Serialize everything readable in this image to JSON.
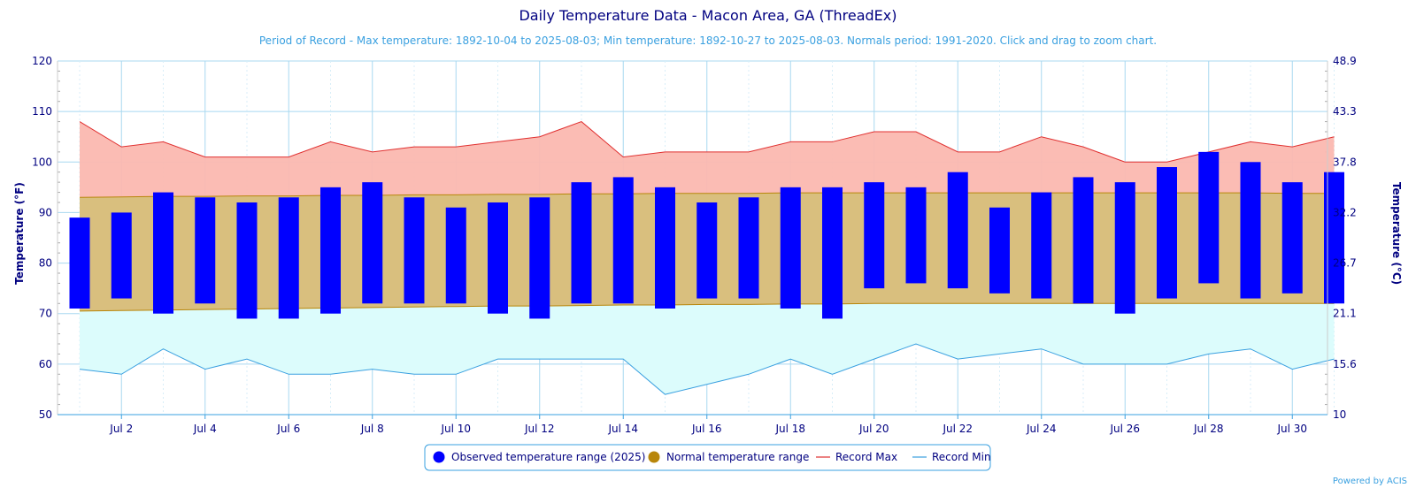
{
  "chart_data": {
    "type": "bar",
    "title": "Daily Temperature Data - Macon Area, GA (ThreadEx)",
    "subtitle": "Period of Record - Max temperature: 1892-10-04 to 2025-08-03; Min temperature: 1892-10-27 to 2025-08-03. Normals period: 1991-2020. Click and drag to zoom chart.",
    "ylabel": "Temperature (°F)",
    "ylabel_right": "Temperature (°C)",
    "ylim": [
      50,
      120
    ],
    "yticks": [
      50,
      60,
      70,
      80,
      90,
      100,
      110,
      120
    ],
    "yticks_right": [
      "10",
      "15.6",
      "21.1",
      "26.7",
      "32.2",
      "37.8",
      "43.3",
      "48.9"
    ],
    "x": [
      1,
      2,
      3,
      4,
      5,
      6,
      7,
      8,
      9,
      10,
      11,
      12,
      13,
      14,
      15,
      16,
      17,
      18,
      19,
      20,
      21,
      22,
      23,
      24,
      25,
      26,
      27,
      28,
      29,
      30,
      31
    ],
    "xtick_labels": [
      "Jul 2",
      "Jul 4",
      "Jul 6",
      "Jul 8",
      "Jul 10",
      "Jul 12",
      "Jul 14",
      "Jul 16",
      "Jul 18",
      "Jul 20",
      "Jul 22",
      "Jul 24",
      "Jul 26",
      "Jul 28",
      "Jul 30"
    ],
    "xtick_days": [
      2,
      4,
      6,
      8,
      10,
      12,
      14,
      16,
      18,
      20,
      22,
      24,
      26,
      28,
      30
    ],
    "grid": true,
    "legend_position": "bottom-center",
    "series": [
      {
        "name": "Observed temperature range (2025)",
        "color": "#0000ff",
        "high": [
          89,
          90,
          94,
          93,
          92,
          93,
          95,
          96,
          93,
          91,
          92,
          93,
          96,
          97,
          95,
          92,
          93,
          95,
          95,
          96,
          95,
          98,
          91,
          94,
          97,
          96,
          99,
          102,
          100,
          96,
          98
        ],
        "low": [
          71,
          73,
          70,
          72,
          69,
          69,
          70,
          72,
          72,
          72,
          70,
          69,
          72,
          72,
          71,
          73,
          73,
          71,
          69,
          75,
          76,
          75,
          74,
          73,
          72,
          70,
          73,
          76,
          73,
          74,
          72
        ]
      },
      {
        "name": "Normal temperature range",
        "color": "#b8860b",
        "high": [
          93,
          93.1,
          93.2,
          93.2,
          93.3,
          93.3,
          93.4,
          93.4,
          93.5,
          93.5,
          93.6,
          93.6,
          93.7,
          93.7,
          93.8,
          93.8,
          93.8,
          93.9,
          93.9,
          93.9,
          93.9,
          93.9,
          93.9,
          93.9,
          93.9,
          93.9,
          93.9,
          93.9,
          93.9,
          93.8,
          93.8
        ],
        "low": [
          70.5,
          70.6,
          70.7,
          70.8,
          70.9,
          71,
          71.1,
          71.2,
          71.3,
          71.4,
          71.5,
          71.5,
          71.6,
          71.7,
          71.7,
          71.8,
          71.8,
          71.9,
          71.9,
          72,
          72,
          72,
          72,
          72,
          72,
          72,
          72,
          72,
          72,
          72,
          72
        ]
      },
      {
        "name": "Record Max",
        "color": "#e03030",
        "values": [
          108,
          103,
          104,
          101,
          101,
          101,
          104,
          102,
          103,
          103,
          104,
          105,
          108,
          101,
          102,
          102,
          102,
          104,
          104,
          106,
          106,
          102,
          102,
          105,
          103,
          100,
          100,
          102,
          104,
          103,
          105
        ]
      },
      {
        "name": "Record Min",
        "color": "#3aa0e0",
        "values": [
          59,
          58,
          63,
          59,
          61,
          58,
          58,
          59,
          58,
          58,
          61,
          61,
          61,
          61,
          54,
          56,
          58,
          61,
          58,
          61,
          64,
          61,
          62,
          63,
          60,
          60,
          60,
          62,
          63,
          59,
          61
        ]
      }
    ]
  },
  "legend": {
    "observed": "Observed temperature range (2025)",
    "normal": "Normal temperature range",
    "record_max": "Record Max",
    "record_min": "Record Min"
  },
  "credit": "Powered by ACIS"
}
